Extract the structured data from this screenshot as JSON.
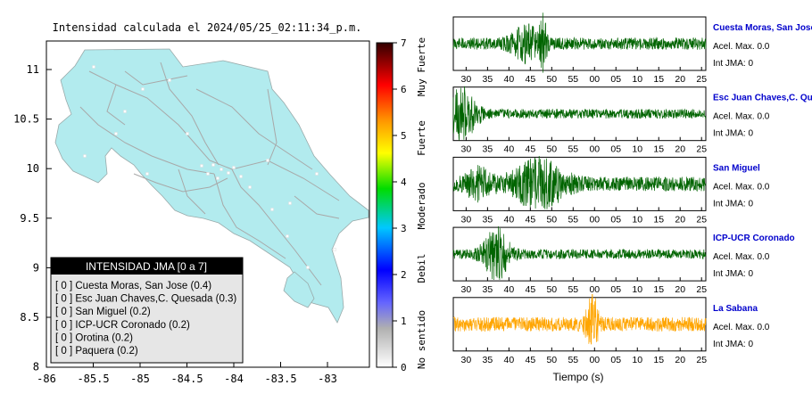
{
  "title": "Intensidad calculada el 2024/05/25_02:11:34_p.m.",
  "map": {
    "x_ticks": [
      "-86",
      "-85.5",
      "-85",
      "-84.5",
      "-84",
      "-83.5",
      "-83"
    ],
    "y_ticks": [
      "11",
      "10.5",
      "10",
      "9.5",
      "9",
      "8.5",
      "8"
    ],
    "colors": {
      "land": "#b2ebee",
      "road": "#a8a8a8",
      "sea": "#ffffff"
    }
  },
  "colorbar": {
    "ticks": [
      "0",
      "1",
      "2",
      "3",
      "4",
      "5",
      "6",
      "7"
    ],
    "labels": [
      "No sentido",
      "Debil",
      "Moderado",
      "Fuerte",
      "Muy Fuerte"
    ]
  },
  "legend": {
    "header": "INTENSIDAD JMA [0 a 7]",
    "entries": [
      "[ 0 ]  Cuesta Moras, San Jose (0.4)",
      "[ 0 ]  Esc Juan Chaves,C. Quesada (0.3)",
      "[ 0 ]  San Miguel (0.2)",
      "[ 0 ]  ICP-UCR Coronado (0.2)",
      "[ 0 ]  Orotina (0.2)",
      "[ 0 ]  Paquera (0.2)"
    ]
  },
  "xlabel": "Tiempo (s)",
  "chart_data": {
    "type": "line",
    "x_tick_labels": [
      "30",
      "35",
      "40",
      "45",
      "50",
      "55",
      "00",
      "05",
      "10",
      "15",
      "20",
      "25"
    ],
    "xlabel": "Tiempo (s)",
    "series": [
      {
        "name": "Cuesta Moras, San Jose",
        "color": "#006400",
        "name_color": "#0000cc",
        "accel": "Acel. Max. 0.0",
        "jma": "Int JMA: 0",
        "base": 0.25,
        "bursts": [
          [
            48,
            0.9,
            0.8
          ],
          [
            44,
            0.6,
            3.5
          ]
        ],
        "seed": 11
      },
      {
        "name": "Esc Juan Chaves,C. Quesada",
        "color": "#006400",
        "name_color": "#0000cc",
        "accel": "Acel. Max. 0.0",
        "jma": "Int JMA: 0",
        "base": 0.2,
        "bursts": [
          [
            29,
            1.0,
            3.5
          ]
        ],
        "seed": 23
      },
      {
        "name": "San Miguel",
        "color": "#006400",
        "name_color": "#0000cc",
        "accel": "Acel. Max. 0.0",
        "jma": "Int JMA: 0",
        "base": 0.3,
        "bursts": [
          [
            47,
            0.9,
            6
          ],
          [
            33,
            0.5,
            3
          ]
        ],
        "seed": 37
      },
      {
        "name": "ICP-UCR Coronado",
        "color": "#006400",
        "name_color": "#0000cc",
        "accel": "Acel. Max. 0.0",
        "jma": "Int JMA: 0",
        "base": 0.2,
        "bursts": [
          [
            37,
            1.0,
            3
          ]
        ],
        "seed": 53
      },
      {
        "name": "La Sabana",
        "color": "#ffa500",
        "name_color": "#0000cc",
        "accel": "Acel. Max. 0.0",
        "jma": "Int JMA: 0",
        "base": 0.3,
        "bursts": [
          [
            59.5,
            1.0,
            1.5
          ]
        ],
        "seed": 71
      }
    ]
  }
}
